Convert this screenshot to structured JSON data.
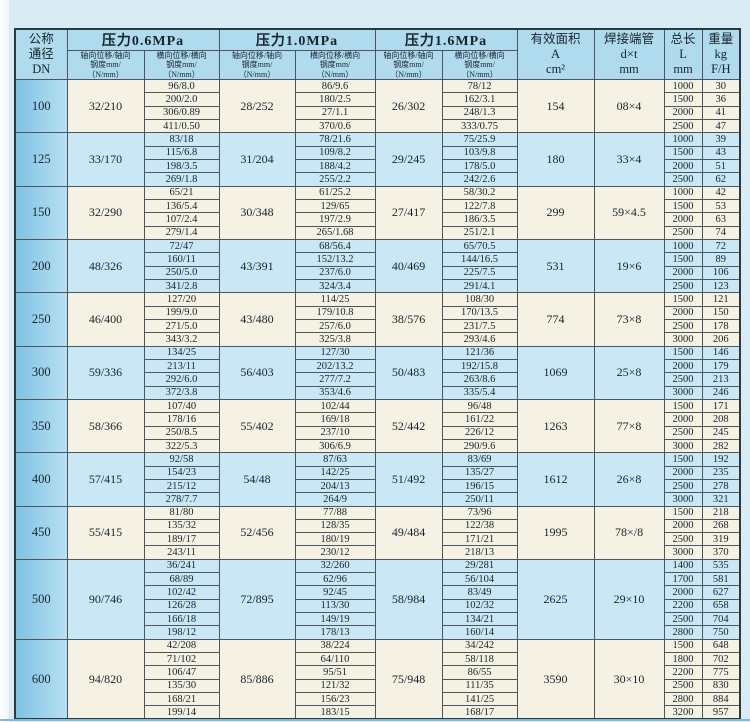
{
  "page": {
    "background": "#d9ecf6"
  },
  "table": {
    "header": {
      "dn_label": "公称\n通径\nDN",
      "groups": [
        {
          "title": "压力0.6MPa",
          "axial_label": "轴向位移/轴向\n钢度mm/\n（N/mm）",
          "lateral_label": "横向位移/横向\n钢度mm/\n（N/mm）"
        },
        {
          "title": "压力1.0MPa",
          "axial_label": "轴向位移/轴向\n钢度mm/\n（N/mm）",
          "lateral_label": "横向位移/横向\n钢度mm/\n（N/mm）"
        },
        {
          "title": "压力1.6MPa",
          "axial_label": "轴向位移/轴向\n钢度mm/\n（N/mm）",
          "lateral_label": "横向位移/横向\n钢度mm/\n（N/mm）"
        }
      ],
      "area_label": "有效面积\nA\ncm²",
      "pipe_label": "焊接端管\nd×t\nmm",
      "length_label": "总长\nL\nmm",
      "weight_label": "重量\nkg\nF/H"
    },
    "blocks": [
      {
        "dn": "100",
        "p06_axial": "32/210",
        "p06_lateral": [
          "96/8.0",
          "200/2.0",
          "306/0.89",
          "411/0.50"
        ],
        "p10_axial": "28/252",
        "p10_lateral": [
          "86/9.6",
          "180/2.5",
          "27/1.1",
          "370/0.6"
        ],
        "p16_axial": "26/302",
        "p16_lateral": [
          "78/12",
          "162/3.1",
          "248/1.3",
          "333/0.75"
        ],
        "area": "154",
        "pipe": "08×4",
        "length": [
          "1000",
          "1500",
          "2000",
          "2500"
        ],
        "weight": [
          "30",
          "36",
          "41",
          "47"
        ]
      },
      {
        "dn": "125",
        "p06_axial": "33/170",
        "p06_lateral": [
          "83/18",
          "115/6.8",
          "198/3.5",
          "269/1.8"
        ],
        "p10_axial": "31/204",
        "p10_lateral": [
          "78/21.6",
          "109/8.2",
          "188/4.2",
          "255/2.2"
        ],
        "p16_axial": "29/245",
        "p16_lateral": [
          "75/25.9",
          "103/9.8",
          "178/5.0",
          "242/2.6"
        ],
        "area": "180",
        "pipe": "33×4",
        "length": [
          "1000",
          "1500",
          "2000",
          "2500"
        ],
        "weight": [
          "39",
          "43",
          "51",
          "62"
        ]
      },
      {
        "dn": "150",
        "p06_axial": "32/290",
        "p06_lateral": [
          "65/21",
          "136/5.4",
          "107/2.4",
          "279/1.4"
        ],
        "p10_axial": "30/348",
        "p10_lateral": [
          "61/25.2",
          "129/65",
          "197/2.9",
          "265/1.68"
        ],
        "p16_axial": "27/417",
        "p16_lateral": [
          "58/30.2",
          "122/7.8",
          "186/3.5",
          "251/2.1"
        ],
        "area": "299",
        "pipe": "59×4.5",
        "length": [
          "1000",
          "1500",
          "2000",
          "2500"
        ],
        "weight": [
          "42",
          "53",
          "63",
          "74"
        ]
      },
      {
        "dn": "200",
        "p06_axial": "48/326",
        "p06_lateral": [
          "72/47",
          "160/11",
          "250/5.0",
          "341/2.8"
        ],
        "p10_axial": "43/391",
        "p10_lateral": [
          "68/56.4",
          "152/13.2",
          "237/6.0",
          "324/3.4"
        ],
        "p16_axial": "40/469",
        "p16_lateral": [
          "65/70.5",
          "144/16.5",
          "225/7.5",
          "291/4.1"
        ],
        "area": "531",
        "pipe": "19×6",
        "length": [
          "1000",
          "1500",
          "2000",
          "2500"
        ],
        "weight": [
          "72",
          "89",
          "106",
          "123"
        ]
      },
      {
        "dn": "250",
        "p06_axial": "46/400",
        "p06_lateral": [
          "127/20",
          "199/9.0",
          "271/5.0",
          "343/3.2"
        ],
        "p10_axial": "43/480",
        "p10_lateral": [
          "114/25",
          "179/10.8",
          "257/6.0",
          "325/3.8"
        ],
        "p16_axial": "38/576",
        "p16_lateral": [
          "108/30",
          "170/13.5",
          "231/7.5",
          "293/4.6"
        ],
        "area": "774",
        "pipe": "73×8",
        "length": [
          "1500",
          "2000",
          "2500",
          "3000"
        ],
        "weight": [
          "121",
          "150",
          "178",
          "206"
        ]
      },
      {
        "dn": "300",
        "p06_axial": "59/336",
        "p06_lateral": [
          "134/25",
          "213/11",
          "292/6.0",
          "372/3.8"
        ],
        "p10_axial": "56/403",
        "p10_lateral": [
          "127/30",
          "202/13.2",
          "277/7.2",
          "353/4.6"
        ],
        "p16_axial": "50/483",
        "p16_lateral": [
          "121/36",
          "192/15.8",
          "263/8.6",
          "335/5.4"
        ],
        "area": "1069",
        "pipe": "25×8",
        "length": [
          "1500",
          "2000",
          "2500",
          "3000"
        ],
        "weight": [
          "146",
          "179",
          "213",
          "246"
        ]
      },
      {
        "dn": "350",
        "p06_axial": "58/366",
        "p06_lateral": [
          "107/40",
          "178/16",
          "250/8.5",
          "322/5.3"
        ],
        "p10_axial": "55/402",
        "p10_lateral": [
          "102/44",
          "169/18",
          "237/10",
          "306/6.9"
        ],
        "p16_axial": "52/442",
        "p16_lateral": [
          "96/48",
          "161/22",
          "226/12",
          "290/9.6"
        ],
        "area": "1263",
        "pipe": "77×8",
        "length": [
          "1500",
          "2000",
          "2500",
          "3000"
        ],
        "weight": [
          "171",
          "208",
          "245",
          "282"
        ]
      },
      {
        "dn": "400",
        "p06_axial": "57/415",
        "p06_lateral": [
          "92/58",
          "154/23",
          "215/12",
          "278/7.7"
        ],
        "p10_axial": "54/48",
        "p10_lateral": [
          "87/63",
          "142/25",
          "204/13",
          "264/9"
        ],
        "p16_axial": "51/492",
        "p16_lateral": [
          "83/69",
          "135/27",
          "196/15",
          "250/11"
        ],
        "area": "1612",
        "pipe": "26×8",
        "length": [
          "1500",
          "2000",
          "2500",
          "3000"
        ],
        "weight": [
          "192",
          "235",
          "278",
          "321"
        ]
      },
      {
        "dn": "450",
        "p06_axial": "55/415",
        "p06_lateral": [
          "81/80",
          "135/32",
          "189/17",
          "243/11"
        ],
        "p10_axial": "52/456",
        "p10_lateral": [
          "77/88",
          "128/35",
          "180/19",
          "230/12"
        ],
        "p16_axial": "49/484",
        "p16_lateral": [
          "73/96",
          "122/38",
          "171/21",
          "218/13"
        ],
        "area": "1995",
        "pipe": "78×/8",
        "length": [
          "1500",
          "2000",
          "2500",
          "3000"
        ],
        "weight": [
          "218",
          "268",
          "319",
          "370"
        ]
      },
      {
        "dn": "500",
        "p06_axial": "90/746",
        "p06_lateral": [
          "36/241",
          "68/89",
          "102/42",
          "126/28",
          "166/18",
          "198/12"
        ],
        "p10_axial": "72/895",
        "p10_lateral": [
          "32/260",
          "62/96",
          "92/45",
          "113/30",
          "149/19",
          "178/13"
        ],
        "p16_axial": "58/984",
        "p16_lateral": [
          "29/281",
          "56/104",
          "83/49",
          "102/32",
          "134/21",
          "160/14"
        ],
        "area": "2625",
        "pipe": "29×10",
        "length": [
          "1400",
          "1700",
          "2000",
          "2200",
          "2500",
          "2800"
        ],
        "weight": [
          "535",
          "581",
          "627",
          "658",
          "704",
          "750"
        ]
      },
      {
        "dn": "600",
        "p06_axial": "94/820",
        "p06_lateral": [
          "42/208",
          "71/102",
          "106/47",
          "135/30",
          "168/21",
          "199/14"
        ],
        "p10_axial": "85/886",
        "p10_lateral": [
          "38/224",
          "64/110",
          "95/51",
          "121/32",
          "156/23",
          "183/15"
        ],
        "p16_axial": "75/948",
        "p16_lateral": [
          "34/242",
          "58/118",
          "86/55",
          "111/35",
          "141/25",
          "168/17"
        ],
        "area": "3590",
        "pipe": "30×10",
        "length": [
          "1500",
          "1800",
          "2200",
          "2500",
          "2800",
          "3200"
        ],
        "weight": [
          "648",
          "702",
          "775",
          "830",
          "884",
          "957"
        ]
      }
    ]
  },
  "colors": {
    "page_bg": "#d9ecf6",
    "header_bg": "#b0dbef",
    "cream_row_bg": "#f5f2e3",
    "blue_row_bg": "#c9e7f5",
    "dn_column_bg": "#8fcbe9",
    "grid_line": "#4b565e"
  }
}
